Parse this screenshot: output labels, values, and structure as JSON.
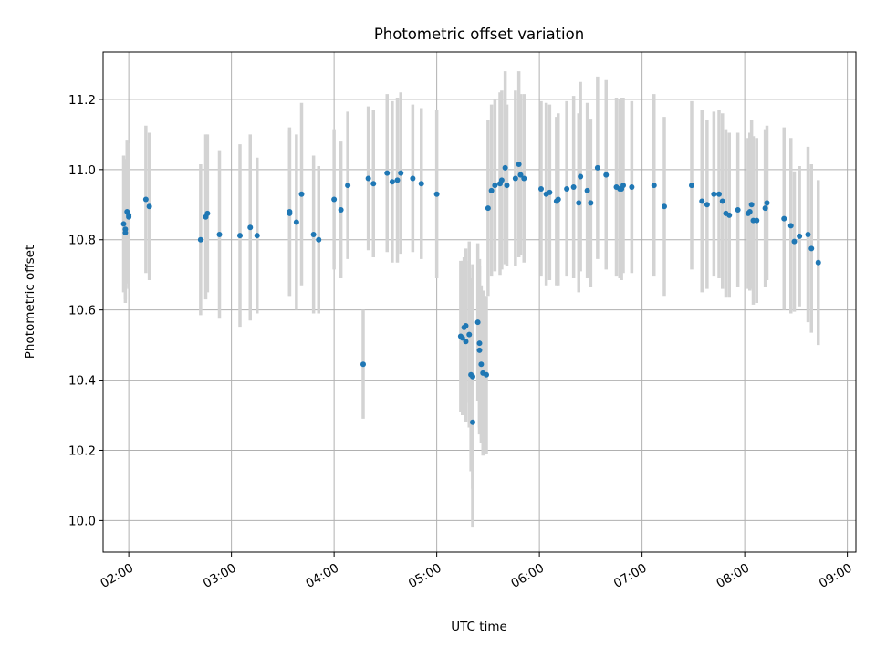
{
  "chart_data": {
    "type": "scatter",
    "title": "Photometric offset variation",
    "xlabel": "UTC time",
    "ylabel": "Photometric offset",
    "grid": true,
    "legend": "none",
    "x_axis_type": "time",
    "xlim": [
      "01:45",
      "09:05"
    ],
    "ylim": [
      9.91,
      11.335
    ],
    "x_ticks": [
      "02:00",
      "03:00",
      "04:00",
      "05:00",
      "06:00",
      "07:00",
      "08:00",
      "09:00"
    ],
    "y_ticks": [
      10.0,
      10.2,
      10.4,
      10.6,
      10.8,
      11.0,
      11.2
    ],
    "y_tick_labels": [
      "10.0",
      "10.2",
      "10.4",
      "10.6",
      "10.8",
      "11.0",
      "11.2"
    ],
    "colors": {
      "marker": "#1f77b4",
      "errorbar": "#d3d3d3",
      "grid": "#b0b0b0"
    },
    "series": [
      {
        "x": [
          "01:57",
          "01:58",
          "01:58",
          "01:59",
          "02:00",
          "02:00",
          "02:10",
          "02:12",
          "02:42",
          "02:45",
          "02:46",
          "02:53",
          "03:05",
          "03:11",
          "03:15",
          "03:34",
          "03:34",
          "03:38",
          "03:41",
          "03:48",
          "03:51",
          "04:00",
          "04:04",
          "04:08",
          "04:17",
          "04:20",
          "04:23",
          "04:31",
          "04:34",
          "04:37",
          "04:39",
          "04:46",
          "04:51",
          "05:00",
          "05:14",
          "05:15",
          "05:16",
          "05:17",
          "05:17",
          "05:19",
          "05:20",
          "05:21",
          "05:21",
          "05:24",
          "05:25",
          "05:25",
          "05:26",
          "05:27",
          "05:29",
          "05:30",
          "05:32",
          "05:34",
          "05:37",
          "05:38",
          "05:40",
          "05:41",
          "05:46",
          "05:48",
          "05:49",
          "05:51",
          "06:01",
          "06:04",
          "06:06",
          "06:10",
          "06:11",
          "06:16",
          "06:20",
          "06:23",
          "06:24",
          "06:28",
          "06:30",
          "06:34",
          "06:39",
          "06:45",
          "06:47",
          "06:48",
          "06:49",
          "06:54",
          "07:07",
          "07:13",
          "07:29",
          "07:35",
          "07:38",
          "07:42",
          "07:45",
          "07:47",
          "07:49",
          "07:51",
          "07:56",
          "08:02",
          "08:03",
          "08:04",
          "08:05",
          "08:07",
          "08:12",
          "08:13",
          "08:23",
          "08:27",
          "08:29",
          "08:32",
          "08:37",
          "08:39",
          "08:43"
        ],
        "y": [
          10.845,
          10.83,
          10.82,
          10.88,
          10.865,
          10.87,
          10.915,
          10.895,
          10.8,
          10.865,
          10.875,
          10.815,
          10.812,
          10.835,
          10.812,
          10.88,
          10.875,
          10.85,
          10.93,
          10.815,
          10.8,
          10.915,
          10.885,
          10.955,
          10.445,
          10.975,
          10.96,
          10.99,
          10.965,
          10.97,
          10.99,
          10.975,
          10.96,
          10.93,
          10.525,
          10.52,
          10.55,
          10.555,
          10.51,
          10.53,
          10.415,
          10.28,
          10.41,
          10.565,
          10.505,
          10.485,
          10.445,
          10.42,
          10.415,
          10.89,
          10.94,
          10.955,
          10.96,
          10.97,
          11.005,
          10.955,
          10.975,
          11.015,
          10.985,
          10.975,
          10.945,
          10.93,
          10.935,
          10.91,
          10.915,
          10.945,
          10.95,
          10.905,
          10.98,
          10.94,
          10.905,
          11.005,
          10.985,
          10.95,
          10.945,
          10.945,
          10.955,
          10.95,
          10.955,
          10.895,
          10.955,
          10.91,
          10.9,
          10.93,
          10.93,
          10.91,
          10.875,
          10.87,
          10.885,
          10.875,
          10.88,
          10.9,
          10.855,
          10.855,
          10.89,
          10.905,
          10.86,
          10.84,
          10.795,
          10.81,
          10.815,
          10.775,
          10.735
        ],
        "yerr": [
          0.195,
          0.2,
          0.2,
          0.205,
          0.205,
          0.205,
          0.21,
          0.21,
          0.215,
          0.235,
          0.225,
          0.24,
          0.26,
          0.265,
          0.222,
          0.24,
          0.235,
          0.25,
          0.26,
          0.225,
          0.21,
          0.2,
          0.195,
          0.21,
          0.155,
          0.205,
          0.21,
          0.225,
          0.23,
          0.235,
          0.23,
          0.21,
          0.215,
          0.24,
          0.215,
          0.22,
          0.2,
          0.22,
          0.23,
          0.265,
          0.275,
          0.3,
          0.32,
          0.225,
          0.24,
          0.24,
          0.225,
          0.235,
          0.225,
          0.25,
          0.245,
          0.245,
          0.26,
          0.255,
          0.275,
          0.23,
          0.25,
          0.265,
          0.23,
          0.24,
          0.25,
          0.26,
          0.25,
          0.24,
          0.245,
          0.25,
          0.26,
          0.255,
          0.27,
          0.25,
          0.24,
          0.26,
          0.27,
          0.255,
          0.255,
          0.26,
          0.25,
          0.245,
          0.26,
          0.255,
          0.24,
          0.26,
          0.24,
          0.235,
          0.24,
          0.25,
          0.24,
          0.235,
          0.22,
          0.215,
          0.225,
          0.24,
          0.24,
          0.235,
          0.225,
          0.22,
          0.26,
          0.25,
          0.2,
          0.2,
          0.25,
          0.24,
          0.235
        ]
      }
    ]
  }
}
